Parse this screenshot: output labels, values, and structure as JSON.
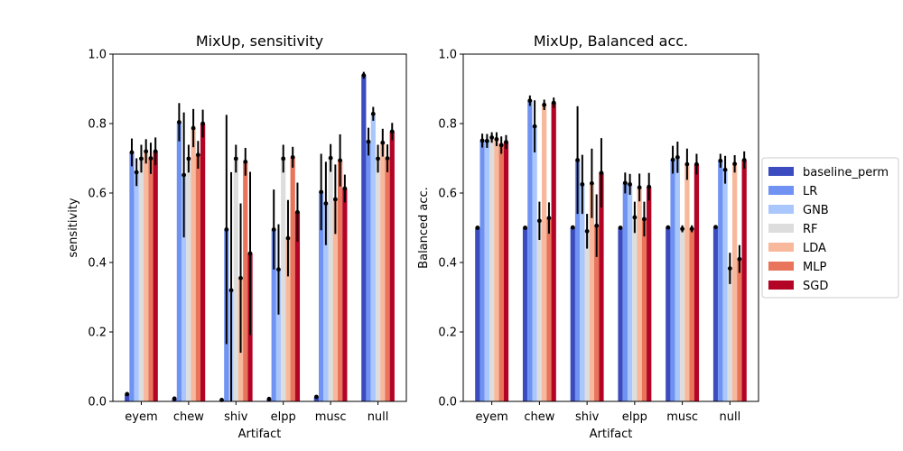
{
  "chart_data": [
    {
      "type": "bar",
      "title": "MixUp, sensitivity",
      "xlabel": "Artifact",
      "ylabel": "sensitivity",
      "ylim": [
        0,
        1
      ],
      "yticks": [
        "0.0",
        "0.2",
        "0.4",
        "0.6",
        "0.8",
        "1.0"
      ],
      "categories": [
        "eyem",
        "chew",
        "shiv",
        "elpp",
        "musc",
        "null"
      ],
      "series": [
        {
          "name": "baseline_perm",
          "values": [
            0.021,
            0.008,
            0.004,
            0.007,
            0.013,
            0.939
          ],
          "errors": [
            0.004,
            0.006,
            0.002,
            0.004,
            0.004,
            0.01
          ]
        },
        {
          "name": "LR",
          "values": [
            0.717,
            0.804,
            0.495,
            0.495,
            0.603,
            0.748
          ],
          "errors": [
            0.04,
            0.055,
            0.33,
            0.115,
            0.11,
            0.04
          ]
        },
        {
          "name": "GNB",
          "values": [
            0.66,
            0.652,
            0.32,
            0.38,
            0.57,
            0.828
          ],
          "errors": [
            0.04,
            0.18,
            0.34,
            0.13,
            0.12,
            0.02
          ]
        },
        {
          "name": "RF",
          "values": [
            0.699,
            0.699,
            0.699,
            0.699,
            0.701,
            0.699
          ],
          "errors": [
            0.04,
            0.04,
            0.04,
            0.04,
            0.04,
            0.04
          ]
        },
        {
          "name": "LDA",
          "values": [
            0.72,
            0.787,
            0.355,
            0.47,
            0.582,
            0.745
          ],
          "errors": [
            0.035,
            0.055,
            0.215,
            0.11,
            0.1,
            0.04
          ]
        },
        {
          "name": "MLP",
          "values": [
            0.7,
            0.71,
            0.69,
            0.703,
            0.694,
            0.7
          ],
          "errors": [
            0.045,
            0.04,
            0.04,
            0.03,
            0.075,
            0.04
          ]
        },
        {
          "name": "SGD",
          "values": [
            0.72,
            0.8,
            0.426,
            0.545,
            0.613,
            0.777
          ],
          "errors": [
            0.04,
            0.04,
            0.235,
            0.085,
            0.04,
            0.025
          ]
        }
      ]
    },
    {
      "type": "bar",
      "title": "MixUp, Balanced acc.",
      "xlabel": "Artifact",
      "ylabel": "Balanced acc.",
      "ylim": [
        0,
        1
      ],
      "yticks": [
        "0.0",
        "0.2",
        "0.4",
        "0.6",
        "0.8",
        "1.0"
      ],
      "categories": [
        "eyem",
        "chew",
        "shiv",
        "elpp",
        "musc",
        "null"
      ],
      "series": [
        {
          "name": "baseline_perm",
          "values": [
            0.5,
            0.5,
            0.501,
            0.5,
            0.501,
            0.502
          ],
          "errors": [
            0.003,
            0.003,
            0.003,
            0.003,
            0.003,
            0.003
          ]
        },
        {
          "name": "LR",
          "values": [
            0.751,
            0.866,
            0.695,
            0.629,
            0.696,
            0.693
          ],
          "errors": [
            0.02,
            0.015,
            0.155,
            0.03,
            0.04,
            0.02
          ]
        },
        {
          "name": "GNB",
          "values": [
            0.75,
            0.792,
            0.625,
            0.625,
            0.703,
            0.667
          ],
          "errors": [
            0.02,
            0.075,
            0.085,
            0.03,
            0.045,
            0.04
          ]
        },
        {
          "name": "RF",
          "values": [
            0.76,
            0.52,
            0.49,
            0.53,
            0.497,
            0.383
          ],
          "errors": [
            0.015,
            0.055,
            0.05,
            0.045,
            0.01,
            0.045
          ]
        },
        {
          "name": "LDA",
          "values": [
            0.755,
            0.854,
            0.628,
            0.616,
            0.683,
            0.684
          ],
          "errors": [
            0.02,
            0.015,
            0.1,
            0.04,
            0.045,
            0.025
          ]
        },
        {
          "name": "MLP",
          "values": [
            0.738,
            0.528,
            0.506,
            0.525,
            0.497,
            0.41
          ],
          "errors": [
            0.025,
            0.045,
            0.09,
            0.05,
            0.01,
            0.04
          ]
        },
        {
          "name": "SGD",
          "values": [
            0.747,
            0.86,
            0.658,
            0.618,
            0.683,
            0.695
          ],
          "errors": [
            0.02,
            0.015,
            0.1,
            0.04,
            0.03,
            0.025
          ]
        }
      ]
    }
  ],
  "legend": {
    "position": "right",
    "entries": [
      "baseline_perm",
      "LR",
      "GNB",
      "RF",
      "LDA",
      "MLP",
      "SGD"
    ]
  },
  "colors": {
    "baseline_perm": "#3b4cc0",
    "LR": "#6f92f3",
    "GNB": "#aac7fd",
    "RF": "#dddddd",
    "LDA": "#f7b89c",
    "MLP": "#e7745b",
    "SGD": "#b40426"
  }
}
